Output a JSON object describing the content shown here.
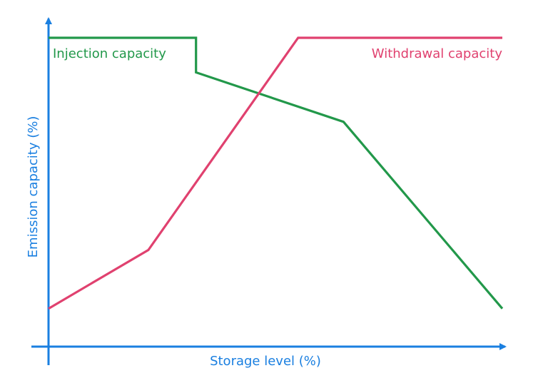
{
  "chart_data": {
    "type": "line",
    "title": "",
    "xlabel": "Storage level (%)",
    "ylabel": "Emission capacity (%)",
    "xlim": [
      0,
      100
    ],
    "ylim": [
      0,
      100
    ],
    "grid": false,
    "legend": "inline labels",
    "series": [
      {
        "name": "Injection capacity",
        "label_position": "top-left",
        "color": "#22984a",
        "x": [
          0,
          32.5,
          32.5,
          65,
          100
        ],
        "y": [
          100,
          100,
          88.8,
          72.8,
          12.3
        ]
      },
      {
        "name": "Withdrawal capacity",
        "label_position": "top-right",
        "color": "#e0416f",
        "x": [
          0,
          22,
          55,
          100
        ],
        "y": [
          12.3,
          31.3,
          100,
          100
        ]
      }
    ],
    "axis_color": "#1a7fe0"
  }
}
